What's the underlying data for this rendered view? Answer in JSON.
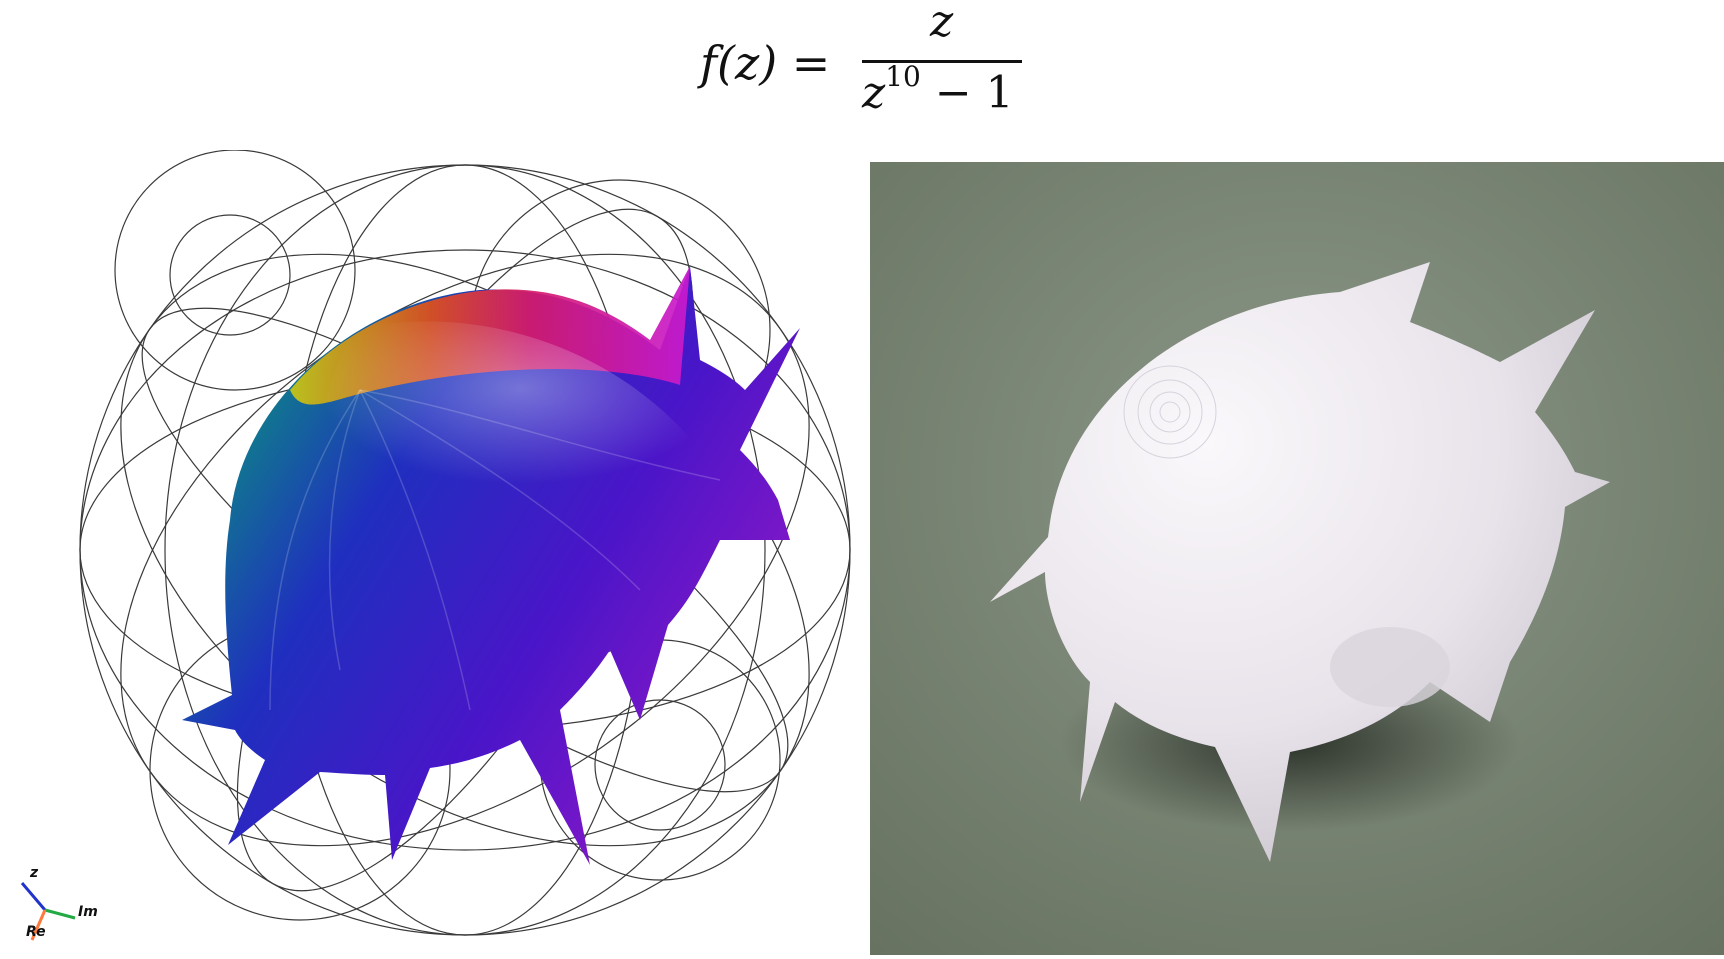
{
  "formula": {
    "lhs": "f(z) =",
    "numerator": "z",
    "denominator_base": "z",
    "denominator_exponent": "10",
    "denominator_rest": " − 1"
  },
  "axes_gizmo": {
    "z_label": "z",
    "im_label": "Im",
    "re_label": "Re"
  },
  "colors": {
    "background": "#ffffff",
    "wire": "#3a3a3a",
    "photo_bg": "#7b8778",
    "print_white": "#eeeaf0"
  }
}
